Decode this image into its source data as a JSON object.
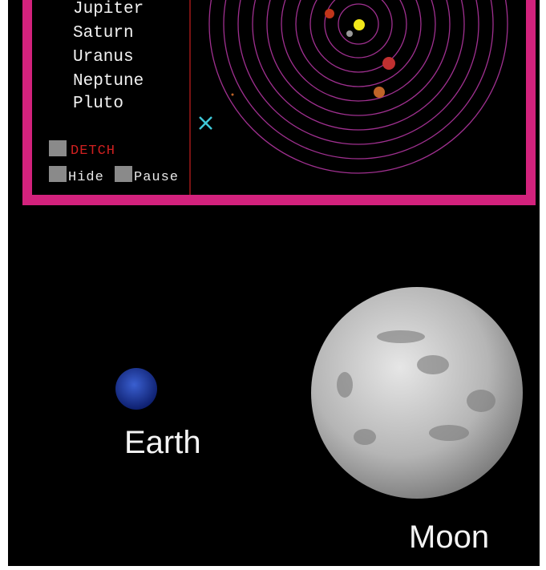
{
  "menu": {
    "items": [
      "Jupiter",
      "Saturn",
      "Uranus",
      "Neptune",
      "Pluto"
    ]
  },
  "buttons": {
    "detach": "DETCH",
    "hide": "Hide",
    "pause": "Pause"
  },
  "labels": {
    "earth": "Earth",
    "moon": "Moon"
  }
}
